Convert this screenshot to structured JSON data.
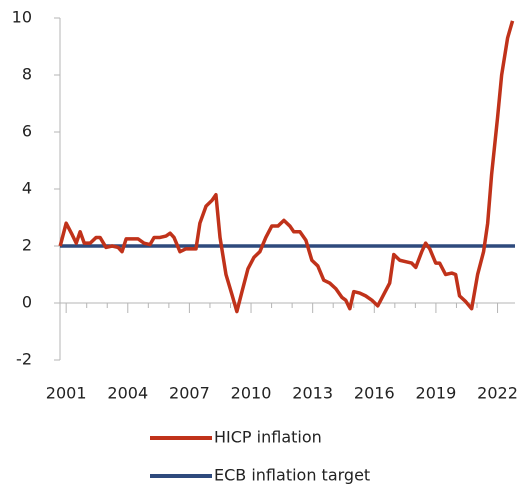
{
  "chart_data": {
    "type": "line",
    "xlim": [
      2000.7,
      2022.85
    ],
    "ylim": [
      -2,
      10
    ],
    "xticks": [
      2001,
      2004,
      2007,
      2010,
      2013,
      2016,
      2019,
      2022
    ],
    "xminorticks": [
      2002,
      2003,
      2005,
      2006,
      2008,
      2009,
      2011,
      2012,
      2014,
      2015,
      2017,
      2018,
      2020,
      2021
    ],
    "yticks": [
      -2,
      0,
      2,
      4,
      6,
      8,
      10
    ],
    "legend": "bottom",
    "series": [
      {
        "name": "HICP inflation",
        "color": "#c0321a",
        "x": [
          2000.71,
          2001.0,
          2001.29,
          2001.49,
          2001.68,
          2001.88,
          2002.17,
          2002.46,
          2002.65,
          2002.94,
          2003.24,
          2003.53,
          2003.72,
          2003.92,
          2004.21,
          2004.5,
          2004.79,
          2005.08,
          2005.28,
          2005.57,
          2005.86,
          2006.06,
          2006.25,
          2006.54,
          2006.83,
          2007.13,
          2007.32,
          2007.51,
          2007.81,
          2008.1,
          2008.29,
          2008.49,
          2008.78,
          2009.07,
          2009.31,
          2009.56,
          2009.85,
          2010.14,
          2010.43,
          2010.72,
          2011.01,
          2011.31,
          2011.6,
          2011.89,
          2012.08,
          2012.38,
          2012.67,
          2012.96,
          2013.25,
          2013.54,
          2013.83,
          2014.13,
          2014.42,
          2014.61,
          2014.81,
          2015.0,
          2015.29,
          2015.58,
          2015.88,
          2016.17,
          2016.46,
          2016.75,
          2016.95,
          2017.24,
          2017.53,
          2017.82,
          2018.02,
          2018.31,
          2018.5,
          2018.7,
          2018.99,
          2019.18,
          2019.47,
          2019.77,
          2019.96,
          2020.15,
          2020.45,
          2020.74,
          2021.03,
          2021.32,
          2021.52,
          2021.71,
          2022.0,
          2022.2,
          2022.49,
          2022.73
        ],
        "values": [
          2.0,
          2.8,
          2.4,
          2.1,
          2.5,
          2.1,
          2.1,
          2.3,
          2.3,
          1.95,
          2.0,
          1.95,
          1.8,
          2.25,
          2.25,
          2.25,
          2.1,
          2.05,
          2.3,
          2.3,
          2.35,
          2.45,
          2.3,
          1.8,
          1.9,
          1.9,
          1.9,
          2.8,
          3.4,
          3.6,
          3.8,
          2.3,
          1.0,
          0.3,
          -0.3,
          0.4,
          1.2,
          1.6,
          1.8,
          2.3,
          2.7,
          2.7,
          2.9,
          2.7,
          2.5,
          2.5,
          2.2,
          1.5,
          1.3,
          0.8,
          0.7,
          0.5,
          0.2,
          0.1,
          -0.2,
          0.4,
          0.35,
          0.25,
          0.1,
          -0.1,
          0.3,
          0.7,
          1.7,
          1.5,
          1.45,
          1.4,
          1.25,
          1.8,
          2.1,
          1.9,
          1.4,
          1.4,
          1.0,
          1.05,
          1.0,
          0.25,
          0.05,
          -0.2,
          1.0,
          1.8,
          2.8,
          4.5,
          6.5,
          8.0,
          9.3,
          9.9
        ]
      },
      {
        "name": "ECB inflation target",
        "color": "#2e4a7d",
        "x": [
          2000.7,
          2022.85
        ],
        "values": [
          2,
          2
        ]
      }
    ]
  }
}
